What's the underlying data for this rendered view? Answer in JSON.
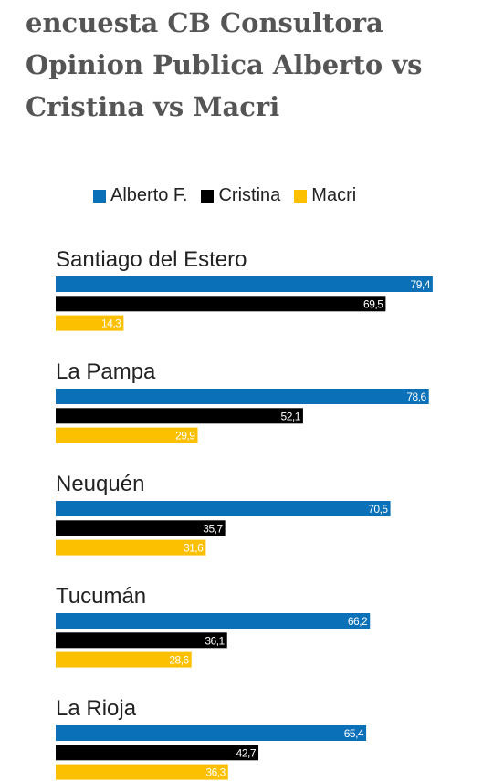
{
  "chart_data": {
    "type": "bar",
    "orientation": "horizontal",
    "title": "encuesta CB Consultora Opinion Publica Alberto vs Cristina vs Macri",
    "categories": [
      "Santiago del Estero",
      "La Pampa",
      "Neuquén",
      "Tucumán",
      "La Rioja"
    ],
    "series": [
      {
        "name": "Alberto F.",
        "color": "#0a70b8",
        "label_color": "#ffffff",
        "values": [
          79.4,
          78.6,
          70.5,
          66.2,
          65.4
        ],
        "labels": [
          "79,4",
          "78,6",
          "70,5",
          "66,2",
          "65,4"
        ]
      },
      {
        "name": "Cristina",
        "color": "#000000",
        "label_color": "#ffffff",
        "values": [
          69.5,
          52.1,
          35.7,
          36.1,
          42.7
        ],
        "labels": [
          "69,5",
          "52,1",
          "35,7",
          "36,1",
          "42,7"
        ]
      },
      {
        "name": "Macri",
        "color": "#fcc000",
        "label_color": "#ffffff",
        "values": [
          14.3,
          29.9,
          31.6,
          28.6,
          36.3
        ],
        "labels": [
          "14,3",
          "29,9",
          "31,6",
          "28,6",
          "36,3"
        ]
      }
    ],
    "xlim": [
      0,
      100
    ],
    "legend_position": "top",
    "grid": false
  }
}
